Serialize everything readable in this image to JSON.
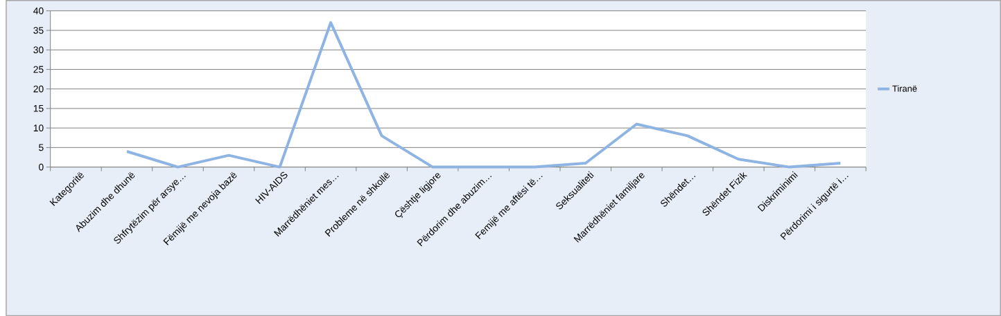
{
  "chart_data": {
    "type": "line",
    "categories": [
      "Kategoritë",
      "Abuzim dhe dhunë",
      "Shfrytëzim për arsye…",
      "Fëmijë me nevoja bazë",
      "HIV-AIDS",
      "Marrëdhëniet mes…",
      "Probleme në shkollë",
      "Çështje ligjore",
      "Përdorim dhe abuzim…",
      "Femijë me aftësi të…",
      "Seksualiteti",
      "Marrëdhëniet familjare",
      "Shëndet…",
      "Shëndet Fizik",
      "Diskriminimi",
      "Përdorimi i sigurtë i…"
    ],
    "series": [
      {
        "name": "Tiranë",
        "color": "#8eb4e3",
        "values": [
          null,
          4,
          0,
          3,
          0,
          37,
          8,
          0,
          0,
          0,
          1,
          11,
          8,
          2,
          0,
          1
        ]
      }
    ],
    "ylim": [
      0,
      40
    ],
    "yticks": [
      0,
      5,
      10,
      15,
      20,
      25,
      30,
      35,
      40
    ],
    "grid": "y",
    "legend": "right",
    "marker": "none",
    "line_style": "solid"
  }
}
